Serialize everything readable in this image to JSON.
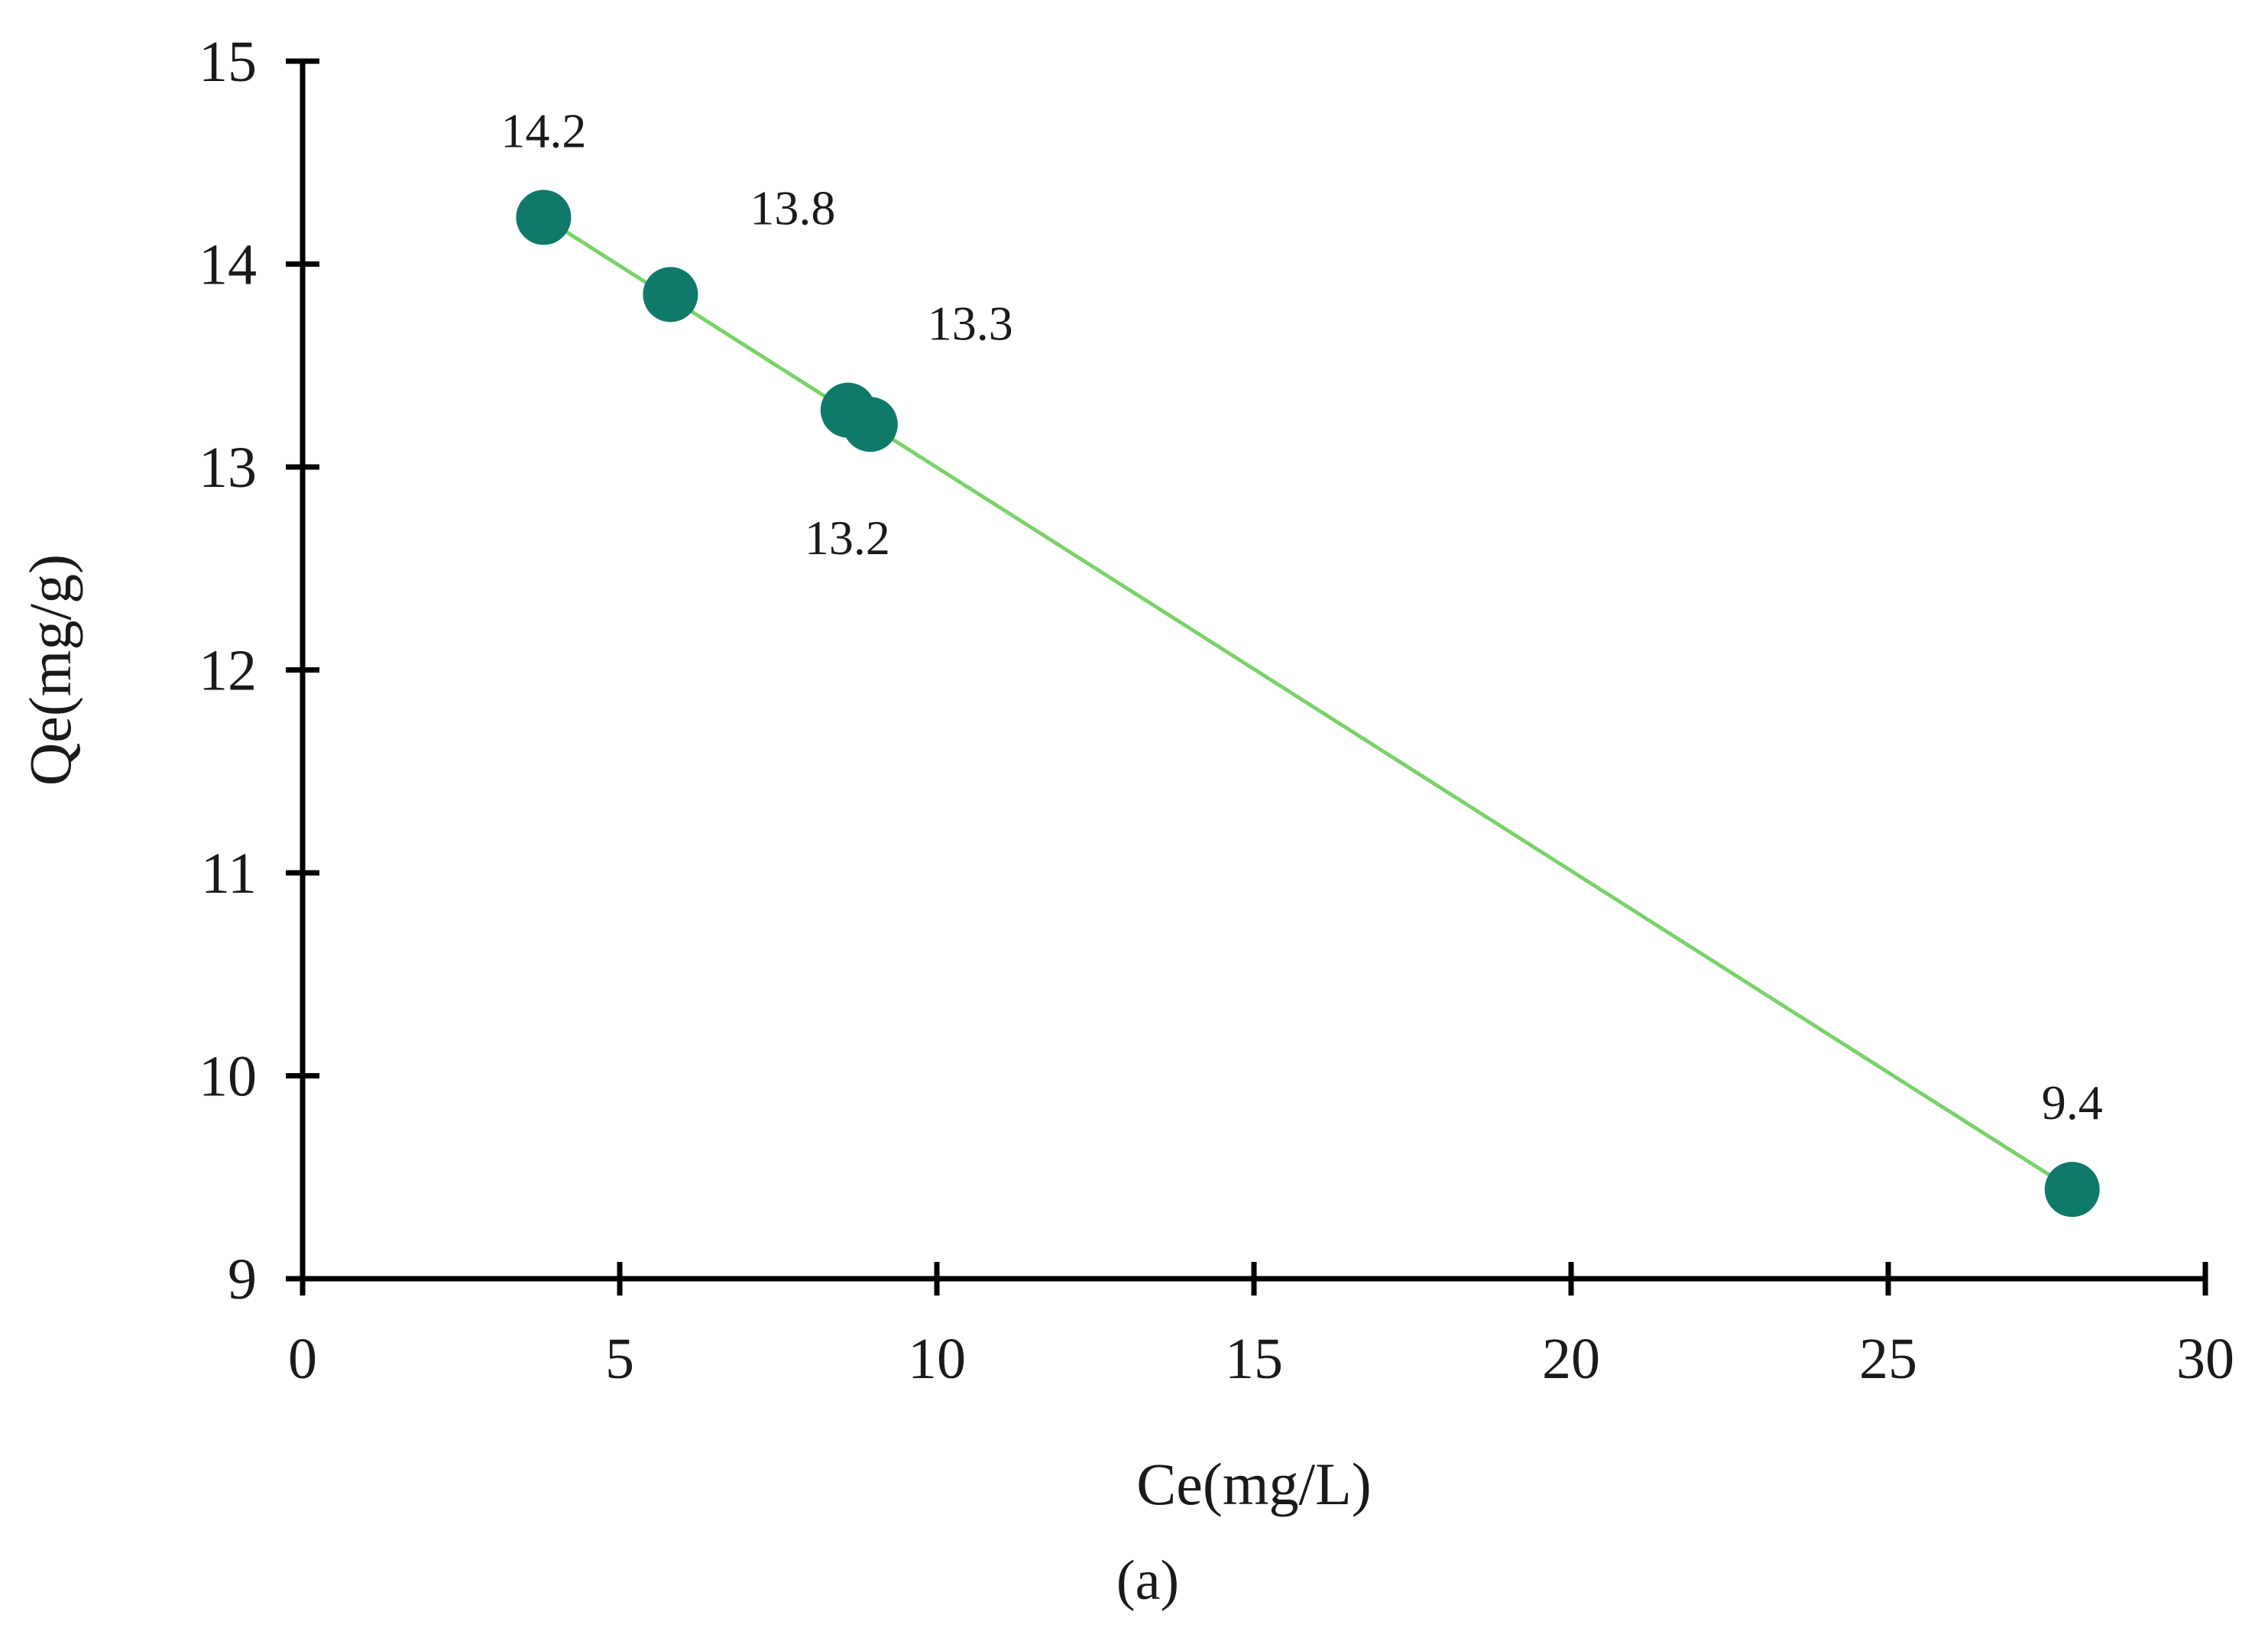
{
  "chart_data": {
    "type": "scatter",
    "title": "",
    "caption": "(a)",
    "xlabel": "Ce(mg/L)",
    "ylabel": "Qe(mg/g)",
    "xlim": [
      0,
      30
    ],
    "ylim": [
      9,
      15
    ],
    "xticks": [
      0,
      5,
      10,
      15,
      20,
      25,
      30
    ],
    "yticks": [
      9,
      10,
      11,
      12,
      13,
      14,
      15
    ],
    "grid": false,
    "legend": "none",
    "marker_color": "#0f7a6a",
    "line_color": "#7ad36a",
    "series": [
      {
        "points": [
          {
            "x": 3.8,
            "y": 14.23,
            "label": "14.2",
            "label_pos": "above"
          },
          {
            "x": 5.8,
            "y": 13.85,
            "label": "13.8",
            "label_pos": "above-right"
          },
          {
            "x": 8.6,
            "y": 13.28,
            "label": "13.3",
            "label_pos": "above-right"
          },
          {
            "x": 8.95,
            "y": 13.21,
            "label": "13.2",
            "label_pos": "below-left"
          },
          {
            "x": 27.9,
            "y": 9.44,
            "label": "9.4",
            "label_pos": "above"
          }
        ]
      }
    ],
    "trendline": {
      "x": [
        3.8,
        27.9
      ],
      "y": [
        14.23,
        9.44
      ]
    }
  }
}
